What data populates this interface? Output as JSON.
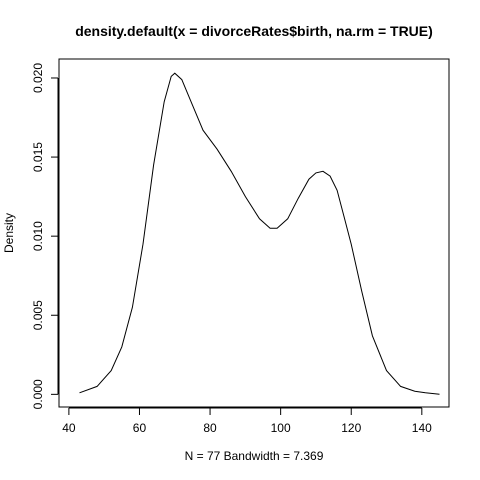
{
  "chart_data": {
    "type": "line",
    "title": "density.default(x = divorceRates$birth, na.rm = TRUE)",
    "xlabel": "N = 77   Bandwidth = 7.369",
    "ylabel": "Density",
    "xlim": [
      37.2,
      147.7
    ],
    "ylim": [
      -0.0008,
      0.0212
    ],
    "x_ticks": [
      40,
      60,
      80,
      100,
      120,
      140
    ],
    "x_tick_labels": [
      "40",
      "60",
      "80",
      "100",
      "120",
      "140"
    ],
    "y_ticks": [
      0.0,
      0.005,
      0.01,
      0.015,
      0.02
    ],
    "y_tick_labels": [
      "0.000",
      "0.005",
      "0.010",
      "0.015",
      "0.020"
    ],
    "grid": false,
    "series": [
      {
        "x": [
          43,
          48,
          52,
          55,
          58,
          61,
          64,
          67,
          69,
          70,
          72,
          75,
          78,
          82,
          86,
          90,
          94,
          97,
          99,
          102,
          105,
          108,
          110,
          112,
          114,
          116,
          118,
          120,
          123,
          126,
          130,
          134,
          138,
          141,
          145
        ],
        "y": [
          0.0001,
          0.0005,
          0.0015,
          0.003,
          0.0055,
          0.0095,
          0.0145,
          0.0185,
          0.0201,
          0.0203,
          0.0199,
          0.0183,
          0.0167,
          0.0155,
          0.0141,
          0.0125,
          0.0111,
          0.0105,
          0.0105,
          0.0111,
          0.0124,
          0.0136,
          0.014,
          0.0141,
          0.0138,
          0.0129,
          0.0112,
          0.0095,
          0.0065,
          0.0037,
          0.0015,
          0.0005,
          0.0002,
          0.0001,
          0.0
        ]
      }
    ]
  }
}
